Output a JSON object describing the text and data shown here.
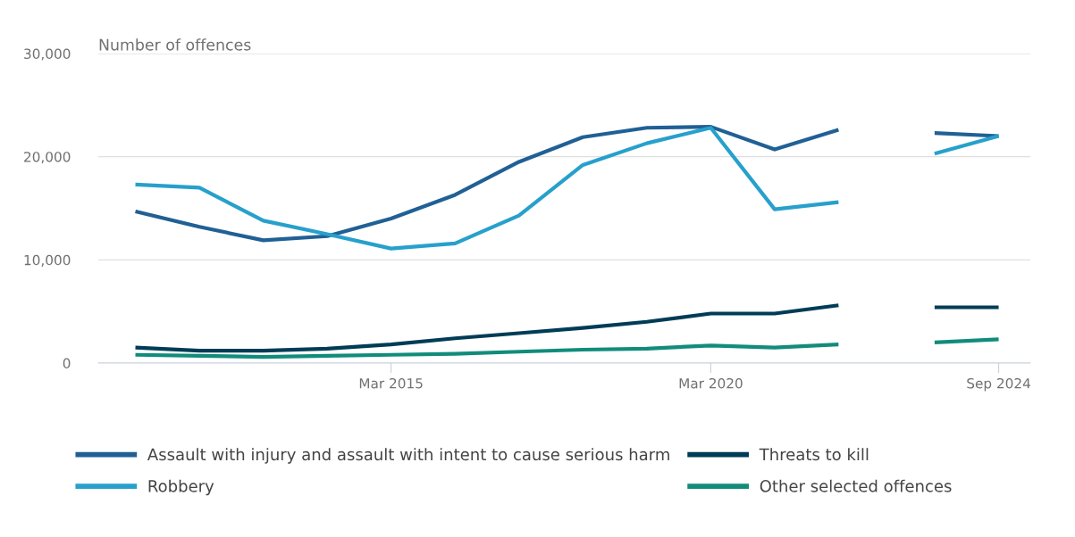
{
  "chart_data": {
    "type": "line",
    "ylabel": "Number of offences",
    "x": [
      "2011-03",
      "2012-03",
      "2013-03",
      "2014-03",
      "2015-03",
      "2016-03",
      "2017-03",
      "2018-03",
      "2019-03",
      "2020-03",
      "2021-03",
      "2022-03",
      "2023-03",
      "2023-09",
      "2024-09"
    ],
    "series": [
      {
        "name": "Assault with injury and assault with intent to cause serious harm",
        "color": "#206095",
        "values": [
          14700,
          13200,
          11900,
          12300,
          14000,
          16300,
          19500,
          21900,
          22800,
          22900,
          20700,
          22600,
          null,
          22300,
          22000
        ]
      },
      {
        "name": "Robbery",
        "color": "#27a0cc",
        "values": [
          17300,
          17000,
          13800,
          12500,
          11100,
          11600,
          14300,
          19200,
          21300,
          22800,
          14900,
          15600,
          null,
          20300,
          22000
        ]
      },
      {
        "name": "Threats to kill",
        "color": "#003c57",
        "values": [
          1500,
          1200,
          1200,
          1400,
          1800,
          2400,
          2900,
          3400,
          4000,
          4800,
          4800,
          5600,
          null,
          5400,
          5400
        ]
      },
      {
        "name": "Other selected offences",
        "color": "#118c7b",
        "values": [
          800,
          700,
          600,
          700,
          800,
          900,
          1100,
          1300,
          1400,
          1700,
          1500,
          1800,
          null,
          2000,
          2300
        ]
      }
    ],
    "xlim": [
      "2010-08",
      "2025-03"
    ],
    "xticks": [
      {
        "value": "2015-03",
        "label": "Mar 2015"
      },
      {
        "value": "2020-03",
        "label": "Mar 2020"
      },
      {
        "value": "2024-09",
        "label": "Sep 2024"
      }
    ],
    "ylim": [
      0,
      30000
    ],
    "yticks": [
      {
        "value": 0,
        "label": "0"
      },
      {
        "value": 10000,
        "label": "10,000"
      },
      {
        "value": 20000,
        "label": "20,000"
      },
      {
        "value": 30000,
        "label": "30,000"
      }
    ],
    "grid": "y",
    "legend": "bottom",
    "marker": "none",
    "line_style": "solid"
  }
}
